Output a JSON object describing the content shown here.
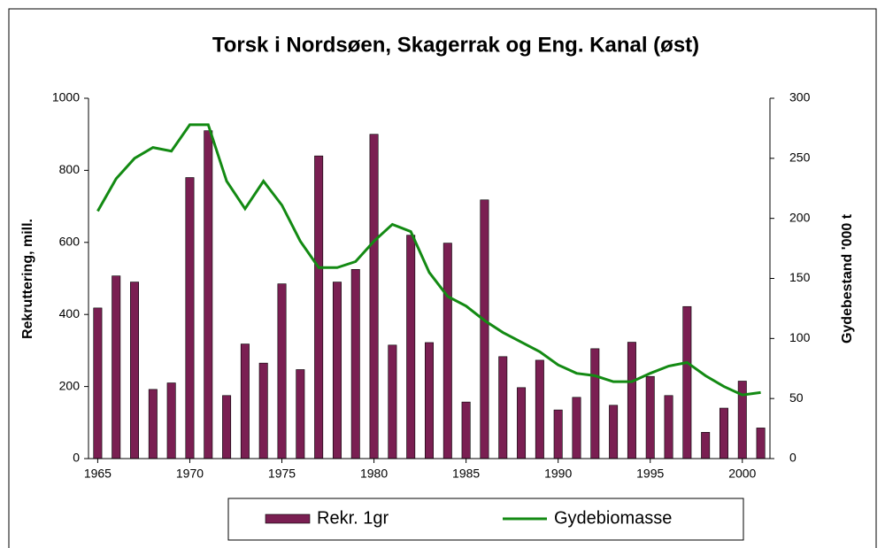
{
  "chart_data": {
    "type": "bar_line",
    "title": "Torsk i Nordsøen, Skagerrak og Eng. Kanal (øst)",
    "y_label": "Rekruttering,  mill.",
    "y2_label": "Gydebestand '000 t",
    "x": [
      1965,
      1966,
      1967,
      1968,
      1969,
      1970,
      1971,
      1972,
      1973,
      1974,
      1975,
      1976,
      1977,
      1978,
      1979,
      1980,
      1981,
      1982,
      1983,
      1984,
      1985,
      1986,
      1987,
      1988,
      1989,
      1990,
      1991,
      1992,
      1993,
      1994,
      1995,
      1996,
      1997,
      1998,
      1999,
      2000,
      2001
    ],
    "series": [
      {
        "name": "Rekr. 1gr",
        "type": "bar",
        "color": "#7a1f52",
        "values": [
          418,
          507,
          490,
          192,
          210,
          780,
          910,
          175,
          318,
          265,
          485,
          247,
          840,
          490,
          525,
          900,
          315,
          620,
          322,
          598,
          157,
          718,
          283,
          197,
          273,
          135,
          170,
          305,
          148,
          323,
          228,
          175,
          422,
          73,
          140,
          215,
          85
        ]
      },
      {
        "name": "Gydebiomasse",
        "type": "line",
        "axis": "y2",
        "color": "#138a13",
        "values": [
          206,
          233,
          250,
          259,
          256,
          278,
          278,
          231,
          208,
          231,
          211,
          181,
          159,
          159,
          164,
          181,
          195,
          189,
          155,
          135,
          127,
          115,
          105,
          97,
          89,
          78,
          71,
          69,
          64,
          64,
          71,
          77,
          80,
          69,
          60,
          53,
          55
        ]
      }
    ],
    "xlim": [
      1964.5,
      2001.5
    ],
    "xticks": [
      1965,
      1970,
      1975,
      1980,
      1985,
      1990,
      1995,
      2000
    ],
    "ylim": [
      0,
      1000
    ],
    "yticks": [
      0,
      200,
      400,
      600,
      800,
      1000
    ],
    "y2lim": [
      0,
      300
    ],
    "y2ticks": [
      0,
      50,
      100,
      150,
      200,
      250,
      300
    ]
  }
}
